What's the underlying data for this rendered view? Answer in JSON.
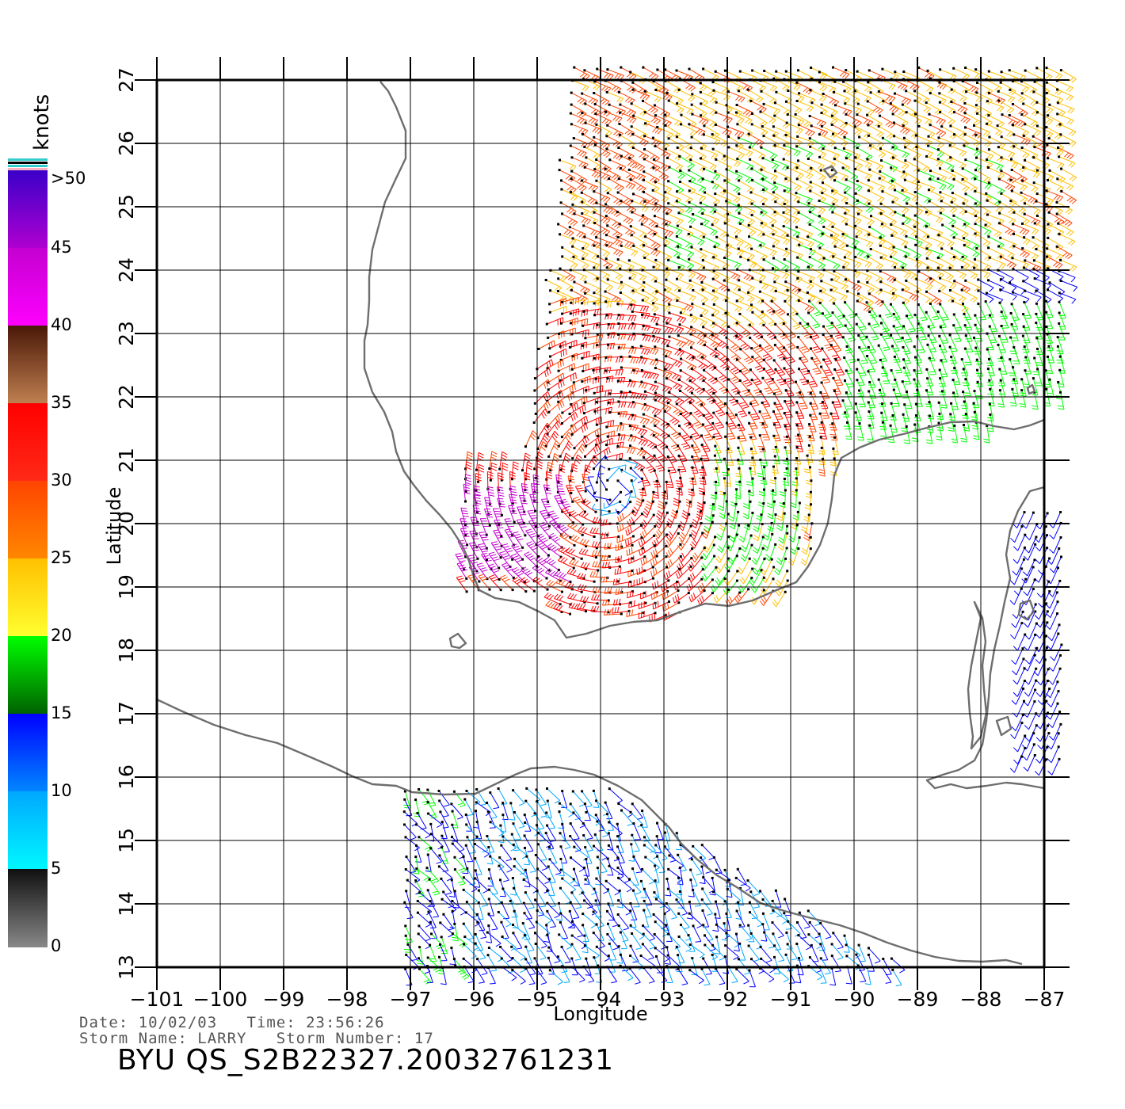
{
  "colorbar": {
    "unit": "knots",
    "labels": [
      ">50",
      "45",
      "40",
      "35",
      "30",
      "25",
      "20",
      "15",
      "10",
      "5",
      "0"
    ],
    "segments": [
      {
        "top": "#3a00c8",
        "bottom": "#b000d0"
      },
      {
        "top": "#c400d0",
        "bottom": "#ff00ff"
      },
      {
        "top": "#4a1808",
        "bottom": "#c08050"
      },
      {
        "top": "#ff0000",
        "bottom": "#ff2a18"
      },
      {
        "top": "#ff4400",
        "bottom": "#ff8800"
      },
      {
        "top": "#ffc000",
        "bottom": "#ffff30"
      },
      {
        "top": "#00ff00",
        "bottom": "#006000"
      },
      {
        "top": "#0000ff",
        "bottom": "#0088ff"
      },
      {
        "top": "#00a8ff",
        "bottom": "#00f8ff"
      },
      {
        "top": "#101010",
        "bottom": "#888888"
      }
    ],
    "top_stripes": [
      "#33cccc",
      "#000000",
      "#33cccc",
      "#ffb0c0"
    ]
  },
  "axes": {
    "x_title": "Longitude",
    "y_title": "Latitude",
    "x_ticks": [
      "−101",
      "−100",
      "−99",
      "−98",
      "−97",
      "−96",
      "−95",
      "−94",
      "−93",
      "−92",
      "−91",
      "−90",
      "−89",
      "−88",
      "−87"
    ],
    "y_ticks": [
      "13",
      "14",
      "15",
      "16",
      "17",
      "18",
      "19",
      "20",
      "21",
      "22",
      "23",
      "24",
      "25",
      "26",
      "27"
    ],
    "lon_range": [
      -101,
      -87
    ],
    "lat_range": [
      13,
      27
    ],
    "grid": true
  },
  "colors": {
    "coastline": "#6e6e6e",
    "grid": "#000000"
  },
  "footer": {
    "date_line": "Date: 10/02/03   Time: 23:56:26",
    "storm_line": "Storm Name: LARRY   Storm Number: 17",
    "product_id": "BYU QS_S2B22327.20032761231"
  },
  "chart_data": {
    "type": "wind-barb map",
    "x": "Longitude",
    "y": "Latitude",
    "xlim": [
      -101,
      -87
    ],
    "ylim": [
      13,
      27
    ],
    "colorbar_unit": "knots",
    "colorbar_ticks": [
      ">50",
      "45",
      "40",
      "35",
      "30",
      "25",
      "20",
      "15",
      "10",
      "5",
      "0"
    ],
    "storm_center_approx": {
      "lon": -93.8,
      "lat": 20.6
    },
    "regions": [
      {
        "lon": [
          -95.5,
          -91.0
        ],
        "lat": [
          19.0,
          23.0
        ],
        "speed_knots": "25-35",
        "circulation": "cyclonic"
      },
      {
        "lon": [
          -95.8,
          -94.8
        ],
        "lat": [
          19.2,
          20.4
        ],
        "speed_knots": "40-50"
      },
      {
        "lon": [
          -95.0,
          -87.0
        ],
        "lat": [
          23.0,
          27.0
        ],
        "speed_knots": "20-25"
      },
      {
        "lon": [
          -91.0,
          -87.0
        ],
        "lat": [
          21.0,
          25.0
        ],
        "speed_knots": "15-20"
      },
      {
        "lon": [
          -96.0,
          -91.0
        ],
        "lat": [
          13.0,
          15.5
        ],
        "speed_knots": "5-15"
      }
    ]
  }
}
